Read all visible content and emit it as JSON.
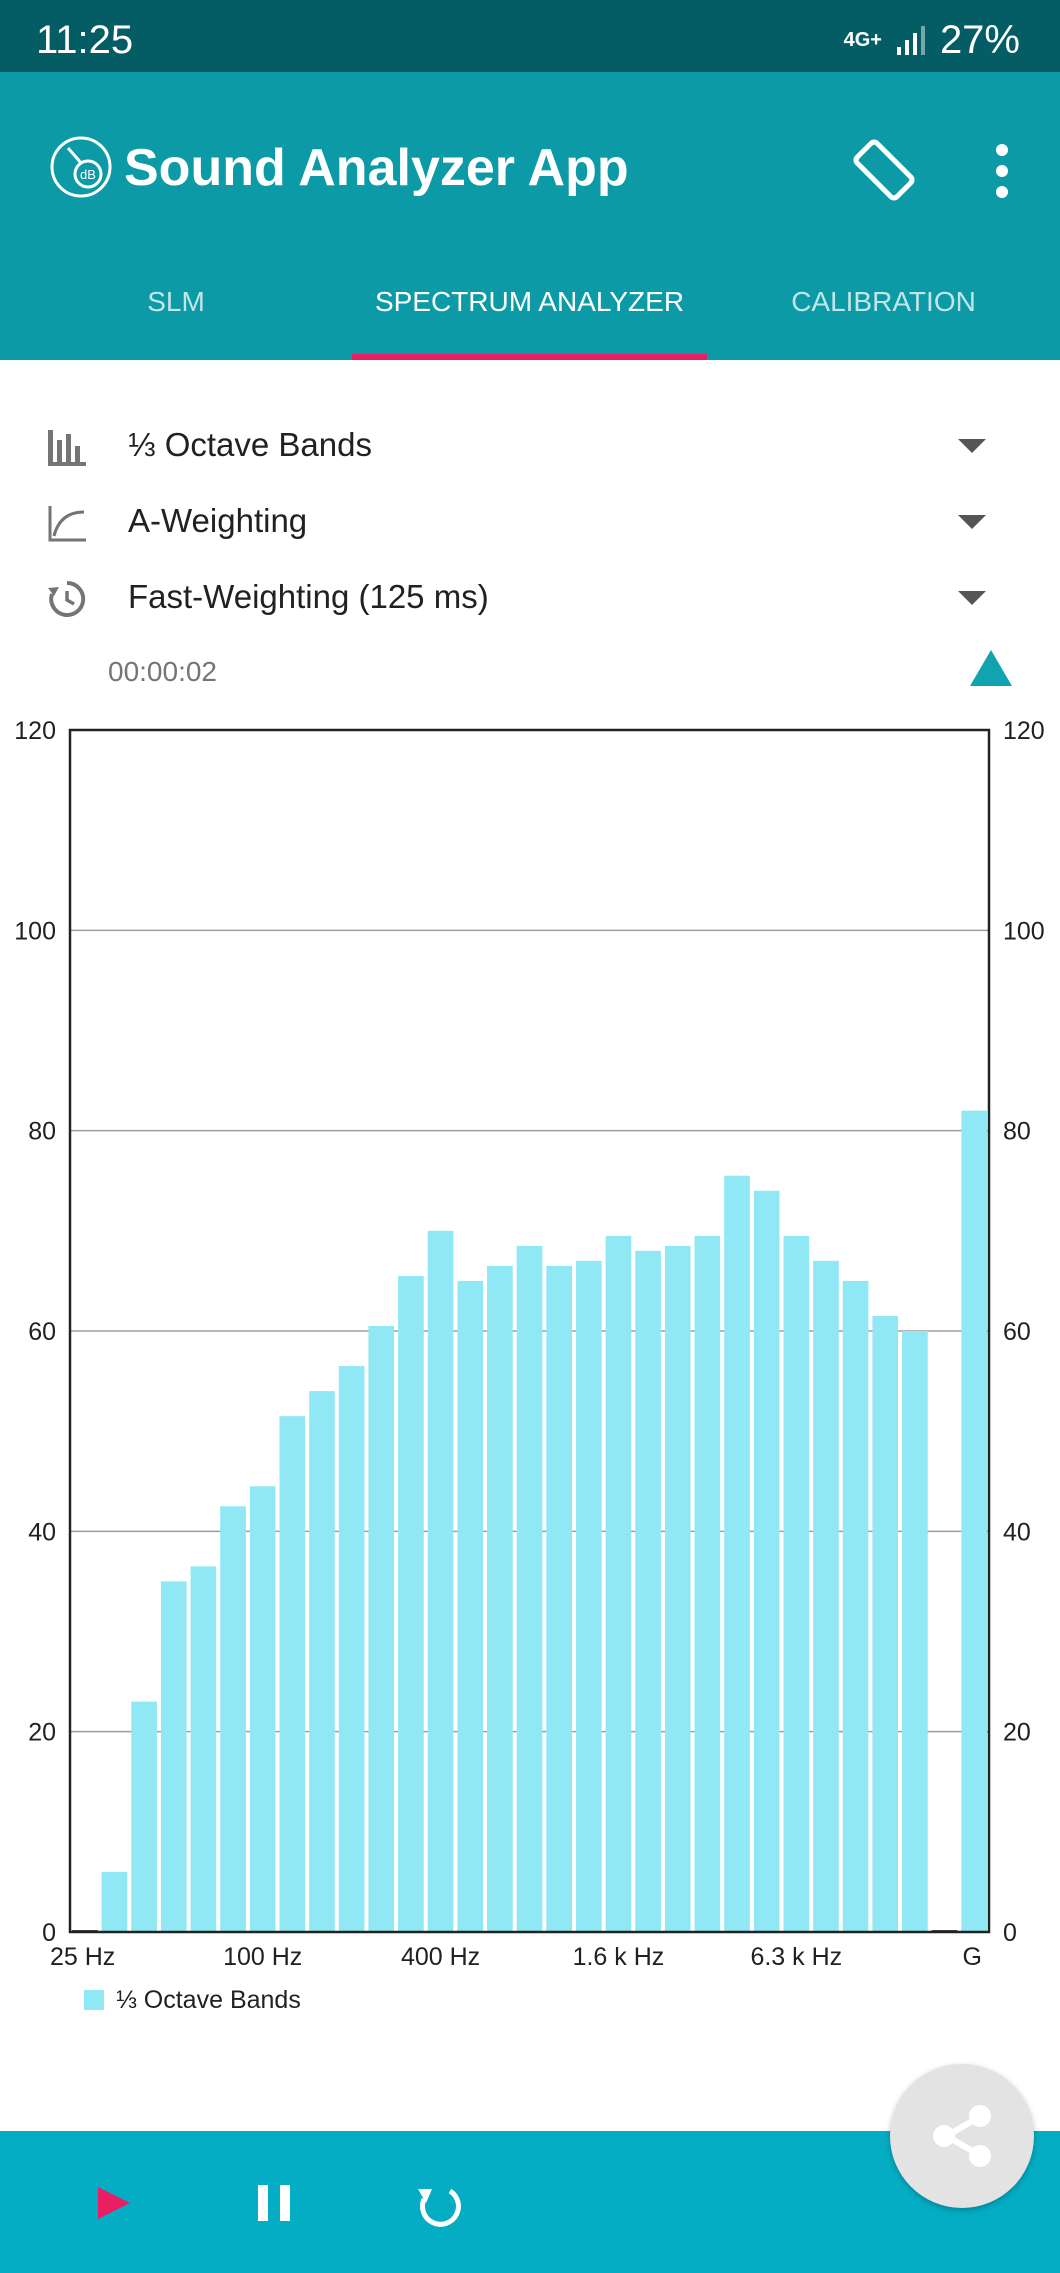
{
  "status": {
    "time": "11:25",
    "network": "4G+",
    "battery": "27%"
  },
  "app": {
    "title": "Sound Analyzer App",
    "logo_text": "dB"
  },
  "tabs": [
    {
      "label": "SLM"
    },
    {
      "label": "SPECTRUM ANALYZER"
    },
    {
      "label": "CALIBRATION"
    }
  ],
  "active_tab": 1,
  "settings": {
    "bands": "⅓ Octave Bands",
    "weighting": "A-Weighting",
    "time_weighting": "Fast-Weighting (125 ms)"
  },
  "timer": "00:00:02",
  "colors": {
    "status_bar": "#045d64",
    "app_bar": "#0b9aa6",
    "tab_indicator": "#e91e63",
    "bar": "#90e8f4",
    "bottom_bar": "#04acc4",
    "play": "#e91e63"
  },
  "icons": {
    "logo": "db-gauge-icon",
    "rotate": "screen-rotation-icon",
    "more": "more-vert-icon",
    "bands": "bar-chart-icon",
    "weighting": "curve-icon",
    "time_weighting": "timer-icon",
    "collapse": "triangle-up-icon",
    "play": "play-icon",
    "pause": "pause-icon",
    "reset": "replay-icon",
    "share": "share-icon"
  },
  "chart_data": {
    "type": "bar",
    "categories": [
      "",
      "",
      "",
      "",
      "",
      "",
      "",
      "",
      "",
      "",
      "",
      "",
      "",
      "",
      "",
      "",
      "",
      "",
      "",
      "",
      "",
      "",
      "",
      "",
      "",
      "",
      "",
      "",
      "",
      "",
      "G"
    ],
    "x_tick_labels": [
      "25 Hz",
      "100 Hz",
      "400 Hz",
      "1.6 k Hz",
      "6.3 k Hz",
      "G"
    ],
    "x_tick_positions": [
      0,
      6,
      12,
      18,
      24,
      30
    ],
    "series": [
      {
        "name": "⅓ Octave Bands",
        "values": [
          0,
          6,
          23,
          35,
          36.5,
          42.5,
          44.5,
          51.5,
          54,
          56.5,
          60.5,
          65.5,
          70,
          65,
          66.5,
          68.5,
          66.5,
          67,
          69.5,
          68,
          68.5,
          69.5,
          75.5,
          74,
          69.5,
          67,
          65,
          61.5,
          60,
          0,
          82
        ]
      }
    ],
    "ylim": [
      0,
      120
    ],
    "y_ticks": [
      0,
      20,
      40,
      60,
      80,
      100,
      120
    ],
    "y_ticks_right": true,
    "grid": true,
    "legend": "bottom-left"
  }
}
